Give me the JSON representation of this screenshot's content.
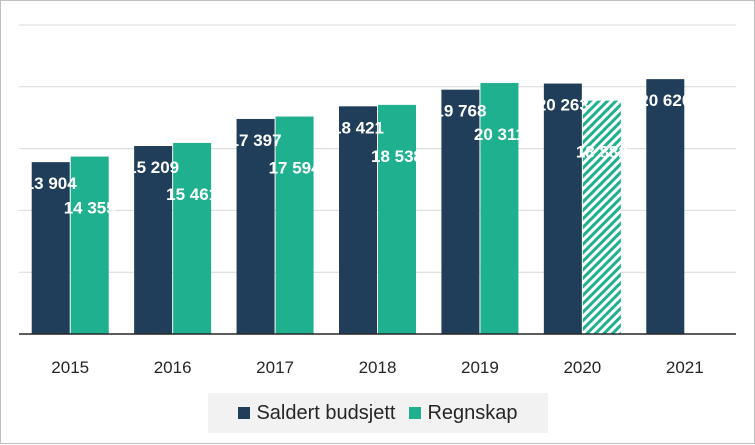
{
  "chart_data": {
    "type": "bar",
    "categories": [
      "2015",
      "2016",
      "2017",
      "2018",
      "2019",
      "2020",
      "2021"
    ],
    "series": [
      {
        "name": "Saldert budsjett",
        "color": "#203D5A",
        "values": [
          13904,
          15209,
          17397,
          18421,
          19768,
          20263,
          20620
        ],
        "labels": [
          "13 904",
          "15 209",
          "17 397",
          "18 421",
          "19 768",
          "20 263",
          "20 620"
        ]
      },
      {
        "name": "Regnskap",
        "color": "#1FB08F",
        "values": [
          14355,
          15461,
          17594,
          18538,
          20311,
          18882,
          null
        ],
        "labels": [
          "14 355",
          "15 461",
          "17 594",
          "18 538",
          "20 311",
          "18 882",
          null
        ],
        "hatched_categories": [
          "2020"
        ]
      }
    ],
    "legend_position": "bottom",
    "grid": true,
    "ylim": [
      0,
      25000
    ],
    "y_tick_step": 5000,
    "y_axis_labels_shown": false
  }
}
